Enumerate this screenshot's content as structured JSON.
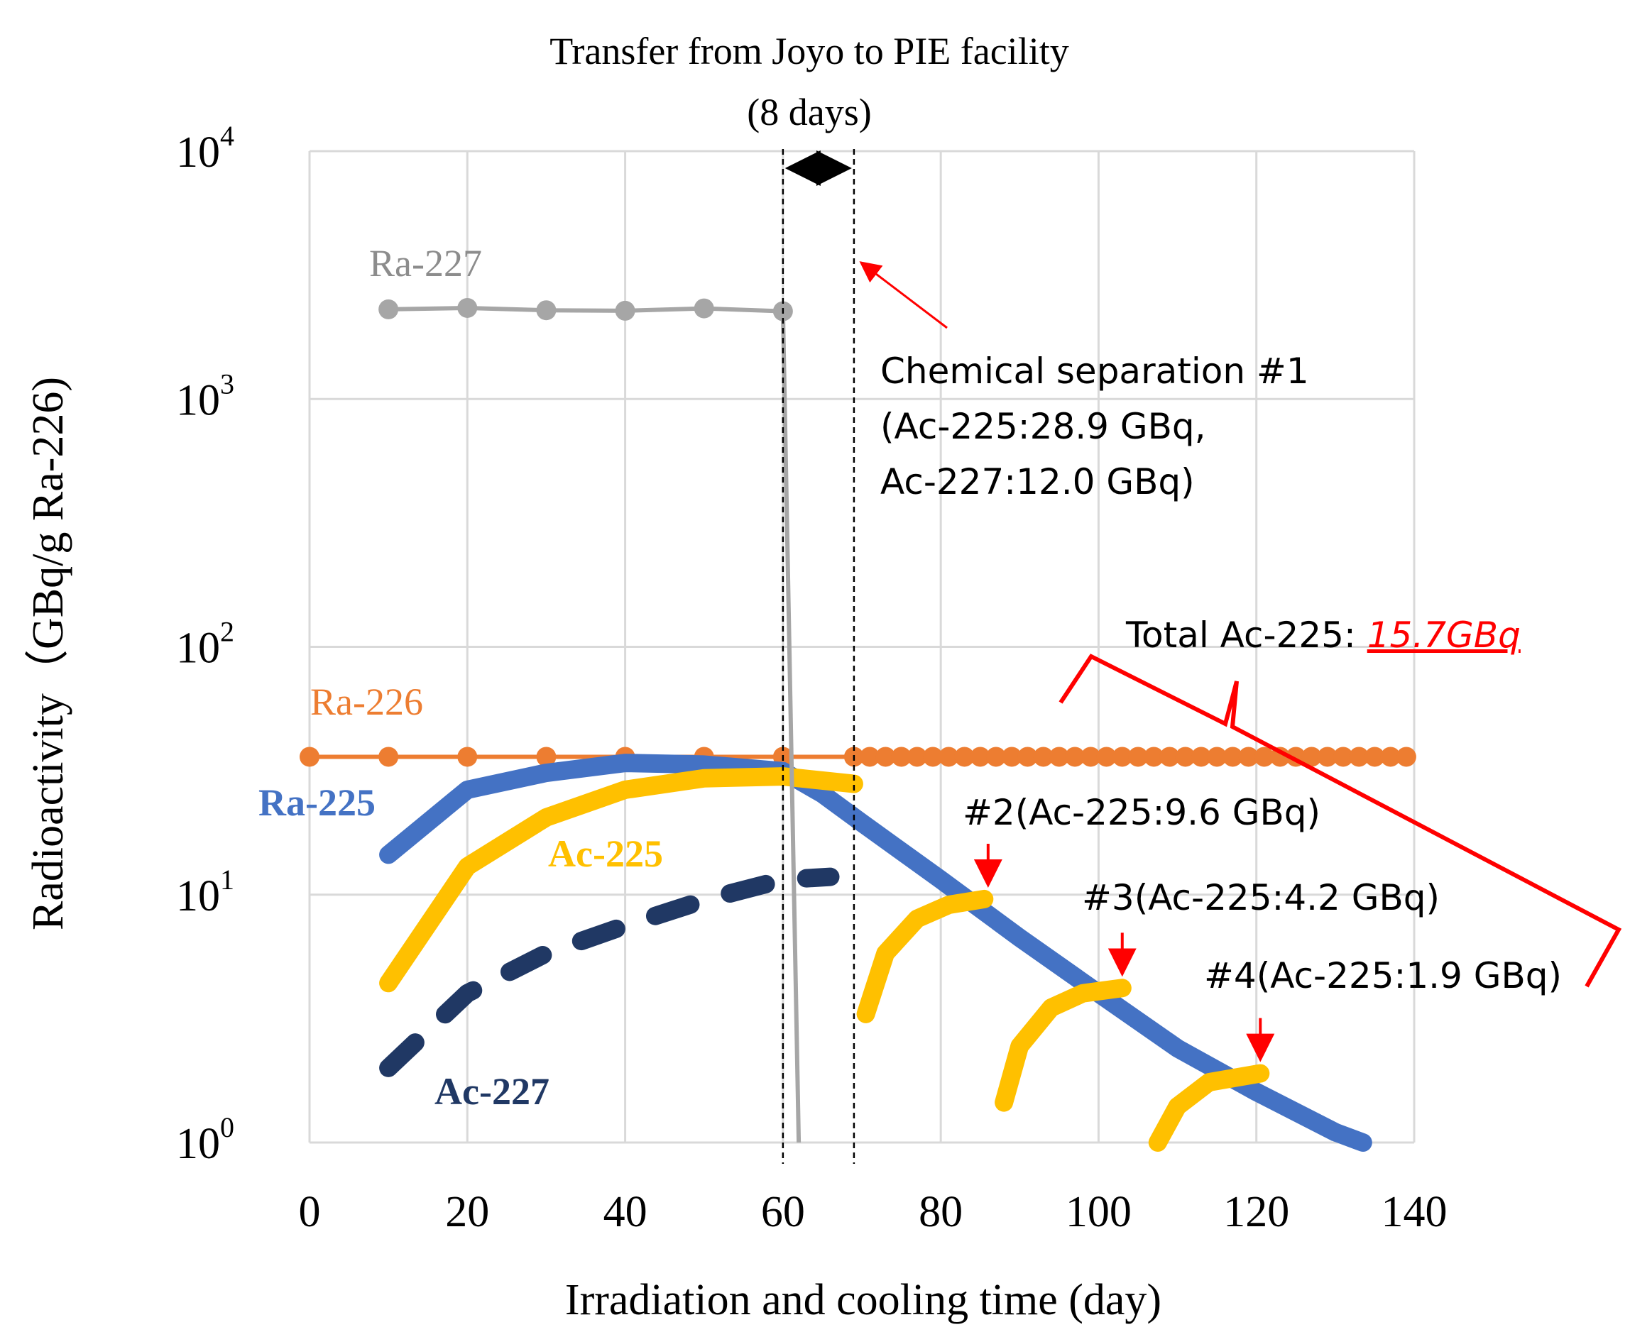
{
  "chart_data": {
    "type": "line",
    "title": "Transfer from Joyo to PIE facility",
    "title_line2": "(8 days)",
    "xlabel": "Irradiation and cooling time (day)",
    "ylabel": "Radioactivity（GBq/g Ra-226)",
    "xlim": [
      0,
      140
    ],
    "ylim": [
      1,
      10000
    ],
    "yscale": "log",
    "grid": true,
    "x_ticks": [
      "0",
      "20",
      "40",
      "60",
      "80",
      "100",
      "120",
      "140"
    ],
    "y_ticks": [
      {
        "base": "10",
        "exp": "0"
      },
      {
        "base": "10",
        "exp": "1"
      },
      {
        "base": "10",
        "exp": "2"
      },
      {
        "base": "10",
        "exp": "3"
      },
      {
        "base": "10",
        "exp": "4"
      }
    ],
    "series": [
      {
        "name": "Ra-227",
        "color": "#a6a6a6",
        "style": "line-markers",
        "x": [
          10,
          20,
          30,
          40,
          50,
          60,
          62
        ],
        "y": [
          2300,
          2330,
          2280,
          2270,
          2320,
          2260,
          1
        ]
      },
      {
        "name": "Ra-226",
        "color": "#ed7d31",
        "style": "line-markers",
        "x": [
          0,
          10,
          20,
          30,
          40,
          50,
          60,
          69,
          71,
          73,
          75,
          77,
          79,
          81,
          83,
          85,
          87,
          89,
          91,
          93,
          95,
          97,
          99,
          101,
          103,
          105,
          107,
          109,
          111,
          113,
          115,
          117,
          119,
          121,
          123,
          125,
          127,
          129,
          131,
          133,
          135,
          137,
          139
        ],
        "y": [
          36,
          36,
          36,
          36,
          36,
          36,
          36,
          36,
          36,
          36,
          36,
          36,
          36,
          36,
          36,
          36,
          36,
          36,
          36,
          36,
          36,
          36,
          36,
          36,
          36,
          36,
          36,
          36,
          36,
          36,
          36,
          36,
          36,
          36,
          36,
          36,
          36,
          36,
          36,
          36,
          36,
          36,
          36
        ]
      },
      {
        "name": "Ra-225",
        "color": "#4472c4",
        "style": "thick",
        "x": [
          10,
          20,
          30,
          40,
          50,
          60,
          65,
          70,
          80,
          90,
          100,
          110,
          120,
          130,
          133.5
        ],
        "y": [
          14.5,
          26.5,
          31,
          34,
          33.5,
          31.5,
          25.5,
          19.5,
          11.5,
          6.7,
          4.0,
          2.4,
          1.6,
          1.1,
          1
        ]
      },
      {
        "name": "Ac-225",
        "color": "#ffc000",
        "style": "thick",
        "x": [
          10,
          20,
          30,
          40,
          50,
          60,
          69
        ],
        "y": [
          4.4,
          13,
          20.5,
          26.5,
          29.5,
          30,
          28
        ]
      },
      {
        "name": "Ac-225 #2",
        "color": "#ffc000",
        "style": "thick",
        "x": [
          70.5,
          73,
          77,
          81,
          85.5
        ],
        "y": [
          3.3,
          5.8,
          8.0,
          9.1,
          9.6
        ]
      },
      {
        "name": "Ac-225 #3",
        "color": "#ffc000",
        "style": "thick",
        "x": [
          88,
          90,
          94,
          98,
          103
        ],
        "y": [
          1.45,
          2.45,
          3.5,
          4.0,
          4.2
        ]
      },
      {
        "name": "Ac-225 #4",
        "color": "#ffc000",
        "style": "thick",
        "x": [
          107.5,
          110,
          114,
          120.5
        ],
        "y": [
          1.0,
          1.4,
          1.75,
          1.9
        ]
      },
      {
        "name": "Ac-227",
        "color": "#203864",
        "style": "dashed",
        "x": [
          10,
          20,
          30,
          40,
          50,
          60,
          66
        ],
        "y": [
          2.0,
          4.0,
          5.8,
          7.5,
          9.5,
          11.5,
          11.8
        ]
      }
    ],
    "series_labels": {
      "ra227": "Ra-227",
      "ra226": "Ra-226",
      "ra225": "Ra-225",
      "ac225": "Ac-225",
      "ac227": "Ac-227"
    },
    "annotations": {
      "sep1_line1": "Chemical separation #1",
      "sep1_line2": "(Ac-225:28.9 GBq,",
      "sep1_line3": "Ac-227:12.0 GBq)",
      "sep2": "#2(Ac-225:9.6 GBq)",
      "sep3": "#3(Ac-225:4.2 GBq)",
      "sep4": "#4(Ac-225:1.9 GBq)",
      "total_prefix": "Total Ac-225: ",
      "total_value": "15.7GBq"
    },
    "markers": {
      "transfer_start_day": 60,
      "transfer_end_day": 69,
      "arrow_targets_day": [
        86,
        103,
        120.5
      ],
      "arrow_targets_value": [
        9.6,
        4.2,
        1.9
      ]
    },
    "colors": {
      "annotation_red": "#ff0000",
      "grid": "#d9d9d9"
    }
  }
}
